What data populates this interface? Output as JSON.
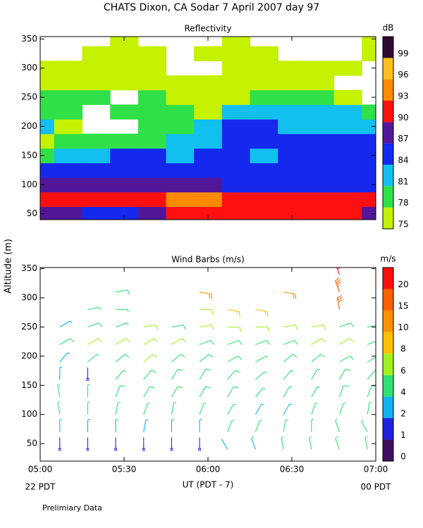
{
  "title": "CHATS Dixon, CA  Sodar    7 April 2007   day  97",
  "ylabel": "Altitude (m)",
  "x_left_note": "22 PDT",
  "x_right_note": "00 PDT",
  "footer": "Prelimiary Data",
  "chart_data": [
    {
      "type": "contour",
      "title": "Reflectivity",
      "colorbar_label": "dB",
      "x": [
        300,
        310,
        320,
        330,
        340,
        350,
        360,
        370,
        380,
        390,
        400,
        410,
        420
      ],
      "altitudes": [
        50,
        75,
        100,
        125,
        150,
        175,
        200,
        225,
        250,
        275,
        300,
        325,
        350
      ],
      "values": [
        [
          88,
          88,
          85,
          85,
          88,
          91,
          91,
          91,
          91,
          91,
          91,
          91,
          88
        ],
        [
          91,
          91,
          91,
          91,
          91,
          94,
          94,
          91,
          91,
          91,
          91,
          91,
          91
        ],
        [
          88,
          88,
          88,
          88,
          88,
          88,
          88,
          85,
          85,
          85,
          85,
          85,
          85
        ],
        [
          85,
          85,
          85,
          85,
          85,
          85,
          85,
          85,
          85,
          85,
          85,
          85,
          85
        ],
        [
          79,
          82,
          82,
          85,
          85,
          82,
          85,
          85,
          82,
          85,
          85,
          85,
          85
        ],
        [
          76,
          79,
          79,
          79,
          79,
          82,
          82,
          85,
          85,
          85,
          85,
          85,
          85
        ],
        [
          82,
          76,
          null,
          null,
          79,
          79,
          82,
          85,
          85,
          82,
          82,
          82,
          82
        ],
        [
          79,
          79,
          null,
          79,
          79,
          79,
          76,
          82,
          82,
          82,
          82,
          82,
          79
        ],
        [
          79,
          79,
          79,
          null,
          79,
          76,
          76,
          76,
          79,
          79,
          79,
          76,
          null
        ],
        [
          76,
          76,
          76,
          76,
          76,
          76,
          76,
          76,
          76,
          76,
          76,
          null,
          null
        ],
        [
          76,
          76,
          76,
          76,
          76,
          null,
          null,
          76,
          76,
          76,
          76,
          76,
          null
        ],
        [
          null,
          null,
          76,
          76,
          76,
          null,
          76,
          76,
          76,
          null,
          null,
          null,
          76
        ],
        [
          null,
          null,
          null,
          76,
          null,
          null,
          null,
          76,
          null,
          null,
          null,
          null,
          76
        ]
      ],
      "levels": [
        75,
        78,
        81,
        84,
        87,
        90,
        93,
        96,
        99
      ],
      "colors": [
        "#c4f200",
        "#30e048",
        "#12c0f0",
        "#1428ee",
        "#52169a",
        "#ff1010",
        "#ff8a00",
        "#ffc020",
        "#2e0a30"
      ],
      "xlim": [
        300,
        420
      ],
      "xticks": [
        300,
        330,
        360,
        390,
        420
      ],
      "ylim": [
        40,
        354
      ],
      "yticks": [
        50,
        100,
        150,
        200,
        250,
        300,
        350
      ]
    },
    {
      "type": "barbs",
      "title": "Wind Barbs (m/s)",
      "colorbar_label": "m/s",
      "xlabel": "UT  (PDT - 7)",
      "x": [
        307,
        317,
        327,
        337,
        347,
        357,
        367,
        377,
        387,
        397,
        407,
        417
      ],
      "altitudes": [
        40,
        70,
        100,
        130,
        160,
        190,
        220,
        250,
        280,
        310,
        340
      ],
      "speed": [
        [
          1,
          1,
          1,
          1,
          1,
          1,
          2,
          3,
          4,
          4,
          4,
          4
        ],
        [
          3,
          3,
          3,
          3,
          3,
          3,
          4,
          4,
          4,
          4,
          4,
          4
        ],
        [
          4,
          4,
          4,
          4,
          4,
          4,
          4,
          3,
          3,
          4,
          4,
          4
        ],
        [
          4,
          4,
          5,
          5,
          5,
          5,
          5,
          4,
          4,
          4,
          5,
          5
        ],
        [
          3,
          1,
          4,
          5,
          5,
          5,
          5,
          4,
          4,
          4,
          5,
          5
        ],
        [
          3,
          4,
          5,
          6,
          5,
          5,
          5,
          4,
          5,
          5,
          5,
          4
        ],
        [
          5,
          6,
          6,
          6,
          6,
          5,
          5,
          5,
          5,
          6,
          7,
          5
        ],
        [
          3,
          5,
          4,
          6,
          5,
          6,
          6,
          6,
          7,
          6,
          5,
          5
        ],
        [
          null,
          4,
          4,
          null,
          null,
          6,
          8,
          8,
          null,
          null,
          15,
          null
        ],
        [
          null,
          null,
          5,
          null,
          null,
          12,
          null,
          null,
          10,
          null,
          18,
          null
        ],
        [
          null,
          null,
          null,
          null,
          null,
          null,
          null,
          null,
          null,
          null,
          20,
          null
        ]
      ],
      "direction": [
        [
          0,
          0,
          0,
          0,
          0,
          0,
          330,
          340,
          350,
          350,
          340,
          350
        ],
        [
          0,
          0,
          0,
          10,
          0,
          0,
          20,
          20,
          10,
          0,
          340,
          330
        ],
        [
          350,
          0,
          10,
          20,
          10,
          20,
          30,
          30,
          30,
          20,
          20,
          10
        ],
        [
          350,
          0,
          20,
          30,
          30,
          30,
          30,
          40,
          30,
          30,
          20,
          20
        ],
        [
          0,
          0,
          40,
          40,
          30,
          30,
          40,
          50,
          40,
          30,
          30,
          40
        ],
        [
          40,
          50,
          50,
          50,
          50,
          50,
          60,
          60,
          50,
          50,
          60,
          60
        ],
        [
          60,
          60,
          60,
          60,
          60,
          70,
          70,
          70,
          70,
          60,
          60,
          70
        ],
        [
          60,
          70,
          70,
          80,
          80,
          80,
          90,
          90,
          80,
          80,
          70,
          80
        ],
        [
          null,
          80,
          90,
          null,
          null,
          90,
          100,
          100,
          null,
          null,
          350,
          null
        ],
        [
          null,
          null,
          80,
          null,
          null,
          100,
          null,
          null,
          100,
          null,
          340,
          null
        ],
        [
          null,
          null,
          null,
          null,
          null,
          null,
          null,
          null,
          null,
          null,
          340,
          null
        ]
      ],
      "levels": [
        0,
        1,
        2,
        4,
        6,
        8,
        10,
        15,
        20
      ],
      "colors": [
        "#401060",
        "#2020e0",
        "#10b0f0",
        "#30e070",
        "#a0f020",
        "#ffc000",
        "#ff9000",
        "#ff6000",
        "#ff1010"
      ],
      "xlim": [
        300,
        420
      ],
      "xticks": [
        {
          "value": 300,
          "label": "05:00"
        },
        {
          "value": 330,
          "label": "05:30"
        },
        {
          "value": 360,
          "label": "06:00"
        },
        {
          "value": 390,
          "label": "06:30"
        },
        {
          "value": 420,
          "label": "07:00"
        }
      ],
      "ylim": [
        20,
        352
      ],
      "yticks": [
        50,
        100,
        150,
        200,
        250,
        300,
        350
      ]
    }
  ]
}
